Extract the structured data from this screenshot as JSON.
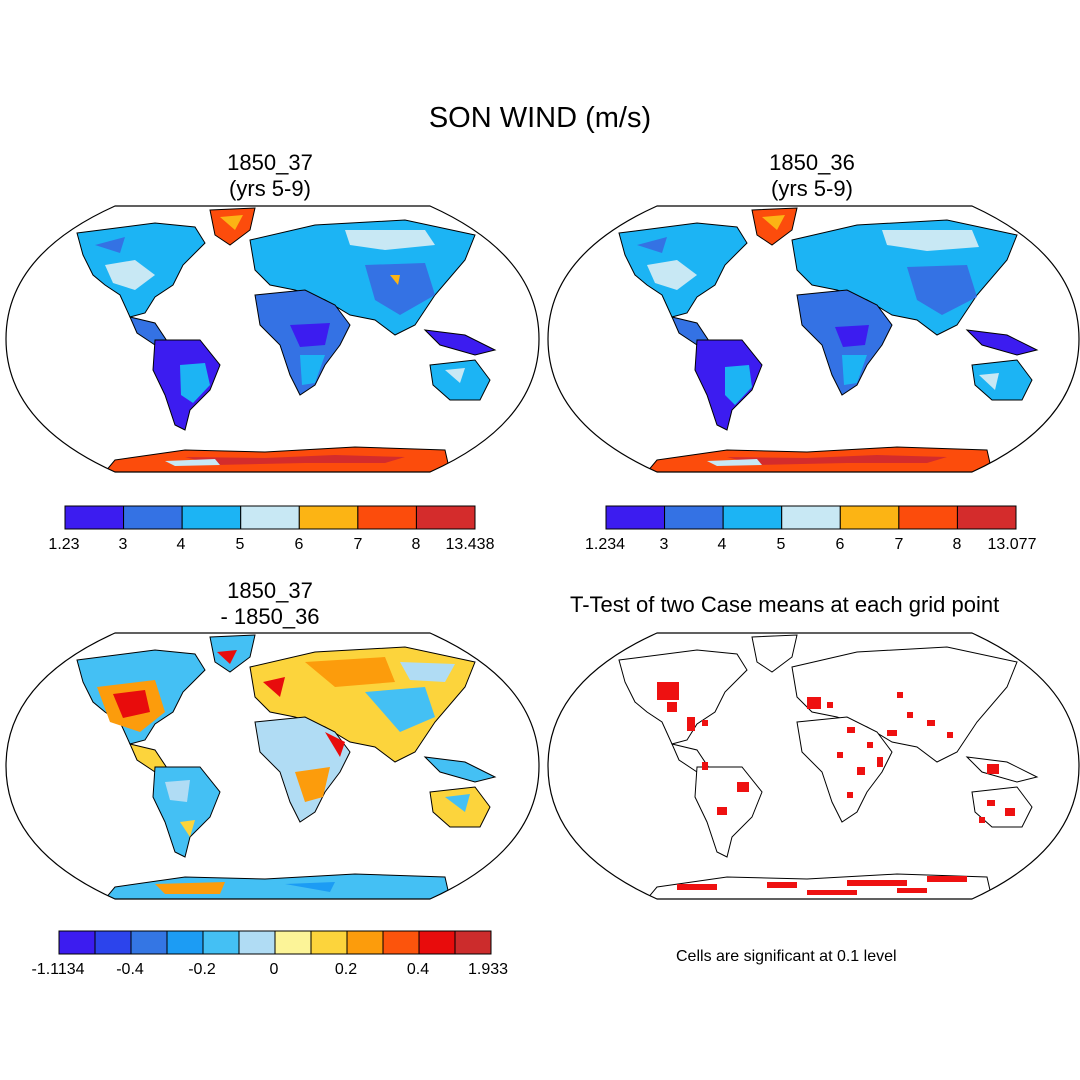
{
  "figure": {
    "title": "SON WIND (m/s)",
    "note": "Cells are significant at 0.1 level"
  },
  "panels": {
    "p1": {
      "title_line1": "1850_37",
      "title_line2": "(yrs 5-9)"
    },
    "p2": {
      "title_line1": "1850_36",
      "title_line2": "(yrs 5-9)"
    },
    "p3": {
      "title_line1": "1850_37",
      "title_line2": "- 1850_36"
    },
    "p4": {
      "title": "T-Test of two Case means at each grid point"
    }
  },
  "colorbars": {
    "cb1": {
      "colors": [
        "#3c1cf0",
        "#3472e4",
        "#1cb4f4",
        "#c8e8f4",
        "#fcb414",
        "#fc4c0c",
        "#d42c2c"
      ],
      "labels": [
        "1.23",
        "3",
        "4",
        "5",
        "6",
        "7",
        "8",
        "13.438"
      ]
    },
    "cb2": {
      "colors": [
        "#3c1cf0",
        "#3472e4",
        "#1cb4f4",
        "#c8e8f4",
        "#fcb414",
        "#fc4c0c",
        "#d42c2c"
      ],
      "labels": [
        "1.234",
        "3",
        "4",
        "5",
        "6",
        "7",
        "8",
        "13.077"
      ]
    },
    "cb3": {
      "colors": [
        "#3c1cf0",
        "#2c44ec",
        "#3476e4",
        "#1c9cf4",
        "#44c0f4",
        "#b0dcf4",
        "#fcf498",
        "#fcd43c",
        "#fc9c0c",
        "#fc540c",
        "#e80c0c",
        "#cc2c2c"
      ],
      "labels": [
        "-1.1134",
        "-0.4",
        "-0.2",
        "0",
        "0.2",
        "0.4",
        "1.933"
      ]
    }
  }
}
